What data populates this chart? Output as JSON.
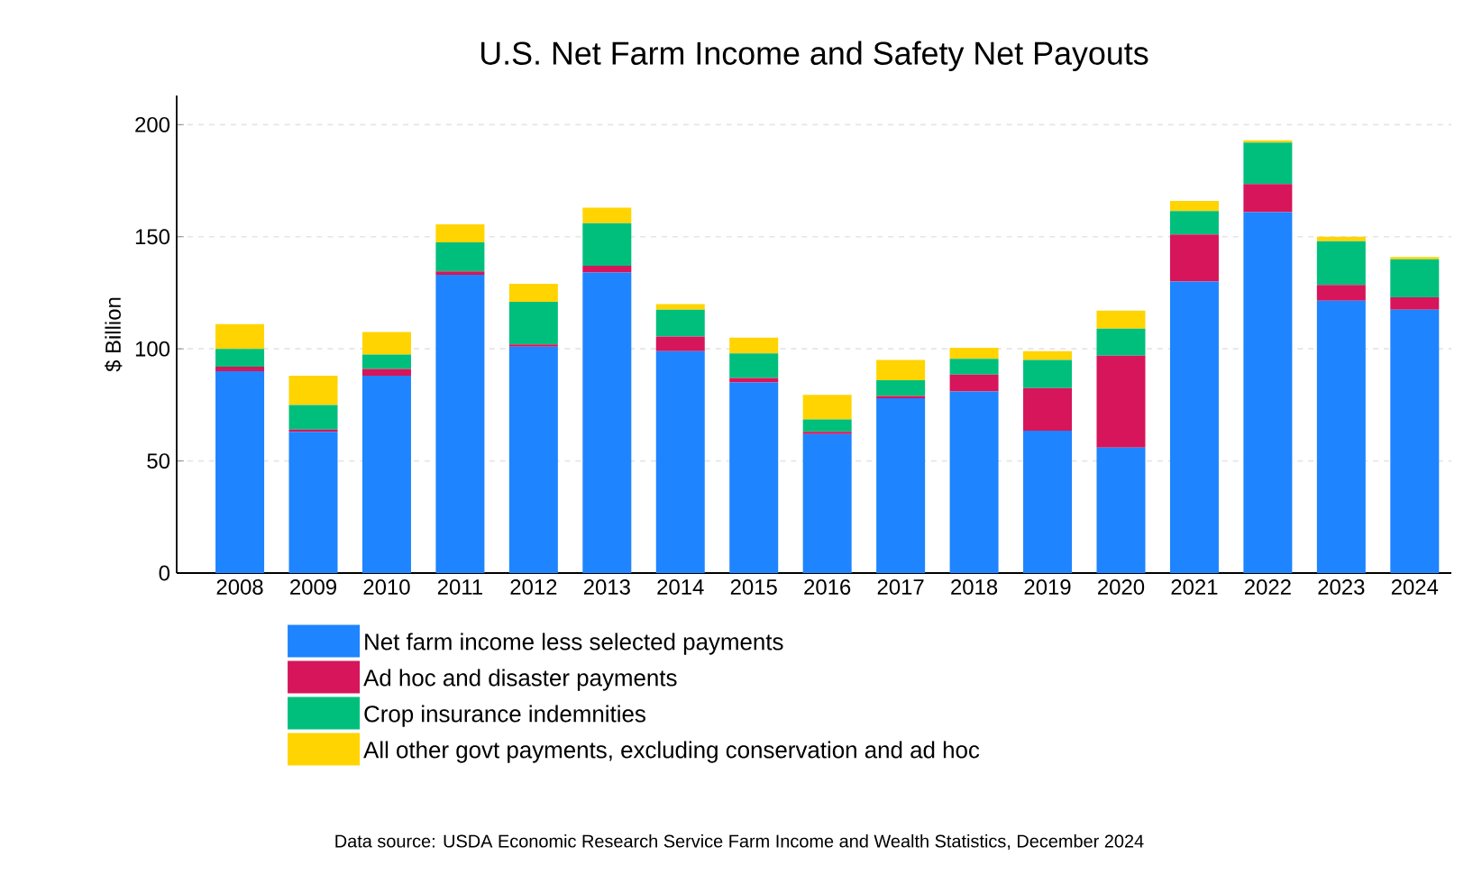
{
  "chart_data": {
    "type": "bar",
    "stacked": true,
    "title": "U.S. Net Farm Income and Safety Net Payouts",
    "ylabel": "$ Billion",
    "categories": [
      "2008",
      "2009",
      "2010",
      "2011",
      "2012",
      "2013",
      "2014",
      "2015",
      "2016",
      "2017",
      "2018",
      "2019",
      "2020",
      "2021",
      "2022",
      "2023",
      "2024"
    ],
    "series": [
      {
        "name": "Net farm income less selected payments",
        "color": "#1e84ff",
        "values": [
          90,
          63,
          88,
          133,
          101,
          134,
          99,
          85,
          62,
          78,
          81,
          63.5,
          56,
          130,
          161,
          121.5,
          117.5
        ]
      },
      {
        "name": "Ad hoc and disaster payments",
        "color": "#d6155a",
        "values": [
          2,
          1,
          3,
          1.5,
          1,
          3,
          6.5,
          2,
          1,
          1,
          7.5,
          19,
          41,
          21,
          12.5,
          7,
          5.5
        ]
      },
      {
        "name": "Crop insurance indemnities",
        "color": "#00bf7d",
        "values": [
          8,
          11,
          6.5,
          13,
          19,
          19,
          12,
          11,
          5.5,
          7,
          7,
          12.5,
          12,
          10.5,
          18.5,
          19.5,
          17
        ]
      },
      {
        "name": "All other govt payments, excluding conservation and ad hoc",
        "color": "#ffd400",
        "values": [
          11,
          13,
          10,
          8,
          8,
          7,
          2.5,
          7,
          11,
          9,
          5,
          4,
          8,
          4.5,
          1,
          2,
          1
        ]
      }
    ],
    "ylim": [
      0,
      213
    ],
    "yticks": [
      0,
      50,
      100,
      150,
      200
    ],
    "grid": "y",
    "legend": "bottom",
    "annotations": [
      "Data source: USDA Economic Research Service Farm Income and Wealth Statistics, December 2024"
    ]
  }
}
